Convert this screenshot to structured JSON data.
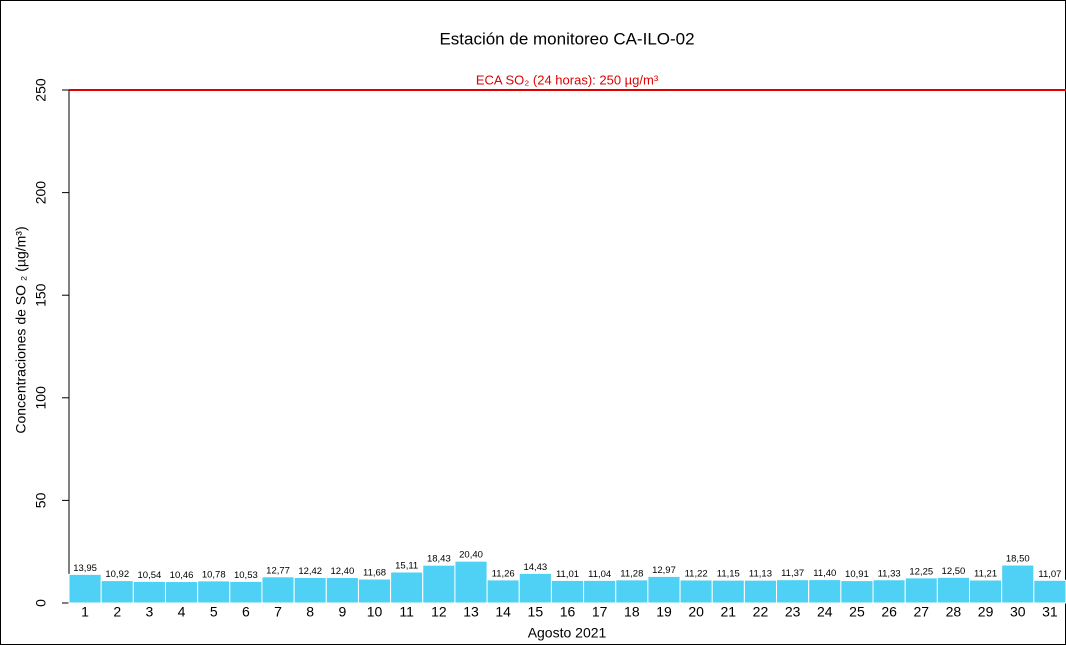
{
  "chart_data": {
    "type": "bar",
    "title": "Estación de monitoreo  CA-ILO-02",
    "x_label": "Agosto 2021",
    "y_label": "Concentraciones de SO ₂ (µg/m³)",
    "categories": [
      "1",
      "2",
      "3",
      "4",
      "5",
      "6",
      "7",
      "8",
      "9",
      "10",
      "11",
      "12",
      "13",
      "14",
      "15",
      "16",
      "17",
      "18",
      "19",
      "20",
      "21",
      "22",
      "23",
      "24",
      "25",
      "26",
      "27",
      "28",
      "29",
      "30",
      "31"
    ],
    "values": [
      13.95,
      10.92,
      10.54,
      10.46,
      10.78,
      10.53,
      12.77,
      12.42,
      12.4,
      11.68,
      15.11,
      18.43,
      20.4,
      11.26,
      14.43,
      11.01,
      11.04,
      11.28,
      12.97,
      11.22,
      11.15,
      11.13,
      11.37,
      11.4,
      10.91,
      11.33,
      12.25,
      12.5,
      11.21,
      18.5,
      11.07
    ],
    "value_labels": [
      "13,95",
      "10,92",
      "10,54",
      "10,46",
      "10,78",
      "10,53",
      "12,77",
      "12,42",
      "12,40",
      "11,68",
      "15,11",
      "18,43",
      "20,40",
      "11,26",
      "14,43",
      "11,01",
      "11,04",
      "11,28",
      "12,97",
      "11,22",
      "11,15",
      "11,13",
      "11,37",
      "11,40",
      "10,91",
      "11,33",
      "12,25",
      "12,50",
      "11,21",
      "18,50",
      "11,07"
    ],
    "color": "#4fd0f5",
    "ylim": [
      0,
      250
    ],
    "yticks": [
      0,
      50,
      100,
      150,
      200,
      250
    ],
    "reference_line": {
      "value": 250,
      "label": "ECA SO₂ (24 horas): 250 µg/m³",
      "color": "#e00000"
    }
  }
}
